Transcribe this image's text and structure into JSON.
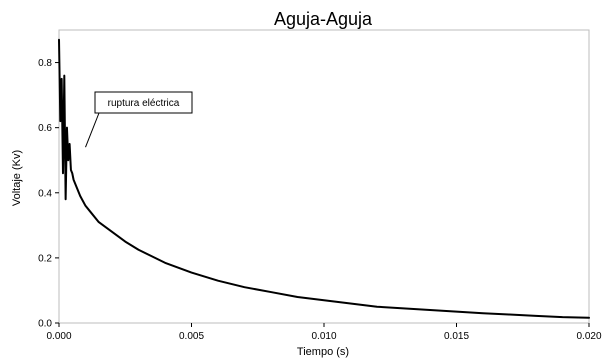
{
  "chart_data": {
    "type": "line",
    "title": "Aguja-Aguja",
    "xlabel": "Tiempo (s)",
    "ylabel": "Voltaje (Kv)",
    "xlim": [
      0,
      0.02
    ],
    "ylim": [
      0,
      0.9
    ],
    "x_ticks": [
      "0.000",
      "0.005",
      "0.010",
      "0.015",
      "0.020"
    ],
    "y_ticks": [
      "0.0",
      "0.2",
      "0.4",
      "0.6",
      "0.8"
    ],
    "annotations": [
      {
        "text": "ruptura eléctrica",
        "target_x": 0.001,
        "target_y": 0.54
      }
    ],
    "series": [
      {
        "x": [
          0.0,
          5e-05,
          0.0001,
          0.00015,
          0.0002,
          0.00025,
          0.0003,
          0.00035,
          0.0004,
          0.00045,
          0.0005,
          0.00055,
          0.0006,
          0.0007,
          0.0008,
          0.001,
          0.0012,
          0.0015,
          0.002,
          0.0025,
          0.003,
          0.0035,
          0.004,
          0.005,
          0.006,
          0.007,
          0.008,
          0.009,
          0.01,
          0.011,
          0.012,
          0.013,
          0.014,
          0.015,
          0.016,
          0.017,
          0.018,
          0.019,
          0.02
        ],
        "values": [
          0.87,
          0.62,
          0.75,
          0.46,
          0.76,
          0.38,
          0.6,
          0.5,
          0.55,
          0.47,
          0.46,
          0.44,
          0.43,
          0.41,
          0.39,
          0.36,
          0.34,
          0.31,
          0.28,
          0.25,
          0.225,
          0.205,
          0.185,
          0.155,
          0.13,
          0.11,
          0.095,
          0.08,
          0.07,
          0.06,
          0.05,
          0.045,
          0.04,
          0.035,
          0.03,
          0.026,
          0.022,
          0.018,
          0.016
        ]
      }
    ]
  }
}
